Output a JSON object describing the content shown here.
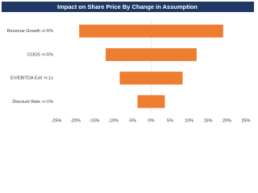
{
  "chart_data": {
    "type": "tornado",
    "title": "Impact on Share Price By Change in Assumption",
    "categories": [
      "Revenue Growth +/-5%",
      "COGS +/-5%",
      "EV/EBITDA Exit +/-1x",
      "Discount Rate +/-1%"
    ],
    "series": [
      {
        "color": "#ed7d31",
        "values": [
          -19,
          -12,
          -8.3,
          -3.6
        ]
      },
      {
        "color": "#ed7d31",
        "values": [
          19,
          12,
          8.3,
          3.6
        ]
      }
    ],
    "xlim": [
      -25,
      25
    ],
    "xticks": [
      {
        "value": -25,
        "label": "-25%"
      },
      {
        "value": -20,
        "label": "-20%"
      },
      {
        "value": -15,
        "label": "-15%"
      },
      {
        "value": -10,
        "label": "-10%"
      },
      {
        "value": -5,
        "label": "-5%"
      },
      {
        "value": 0,
        "label": "0%"
      },
      {
        "value": 5,
        "label": "5%"
      },
      {
        "value": 10,
        "label": "10%"
      },
      {
        "value": 15,
        "label": "15%"
      },
      {
        "value": 20,
        "label": "20%"
      },
      {
        "value": 25,
        "label": "25%"
      }
    ]
  }
}
